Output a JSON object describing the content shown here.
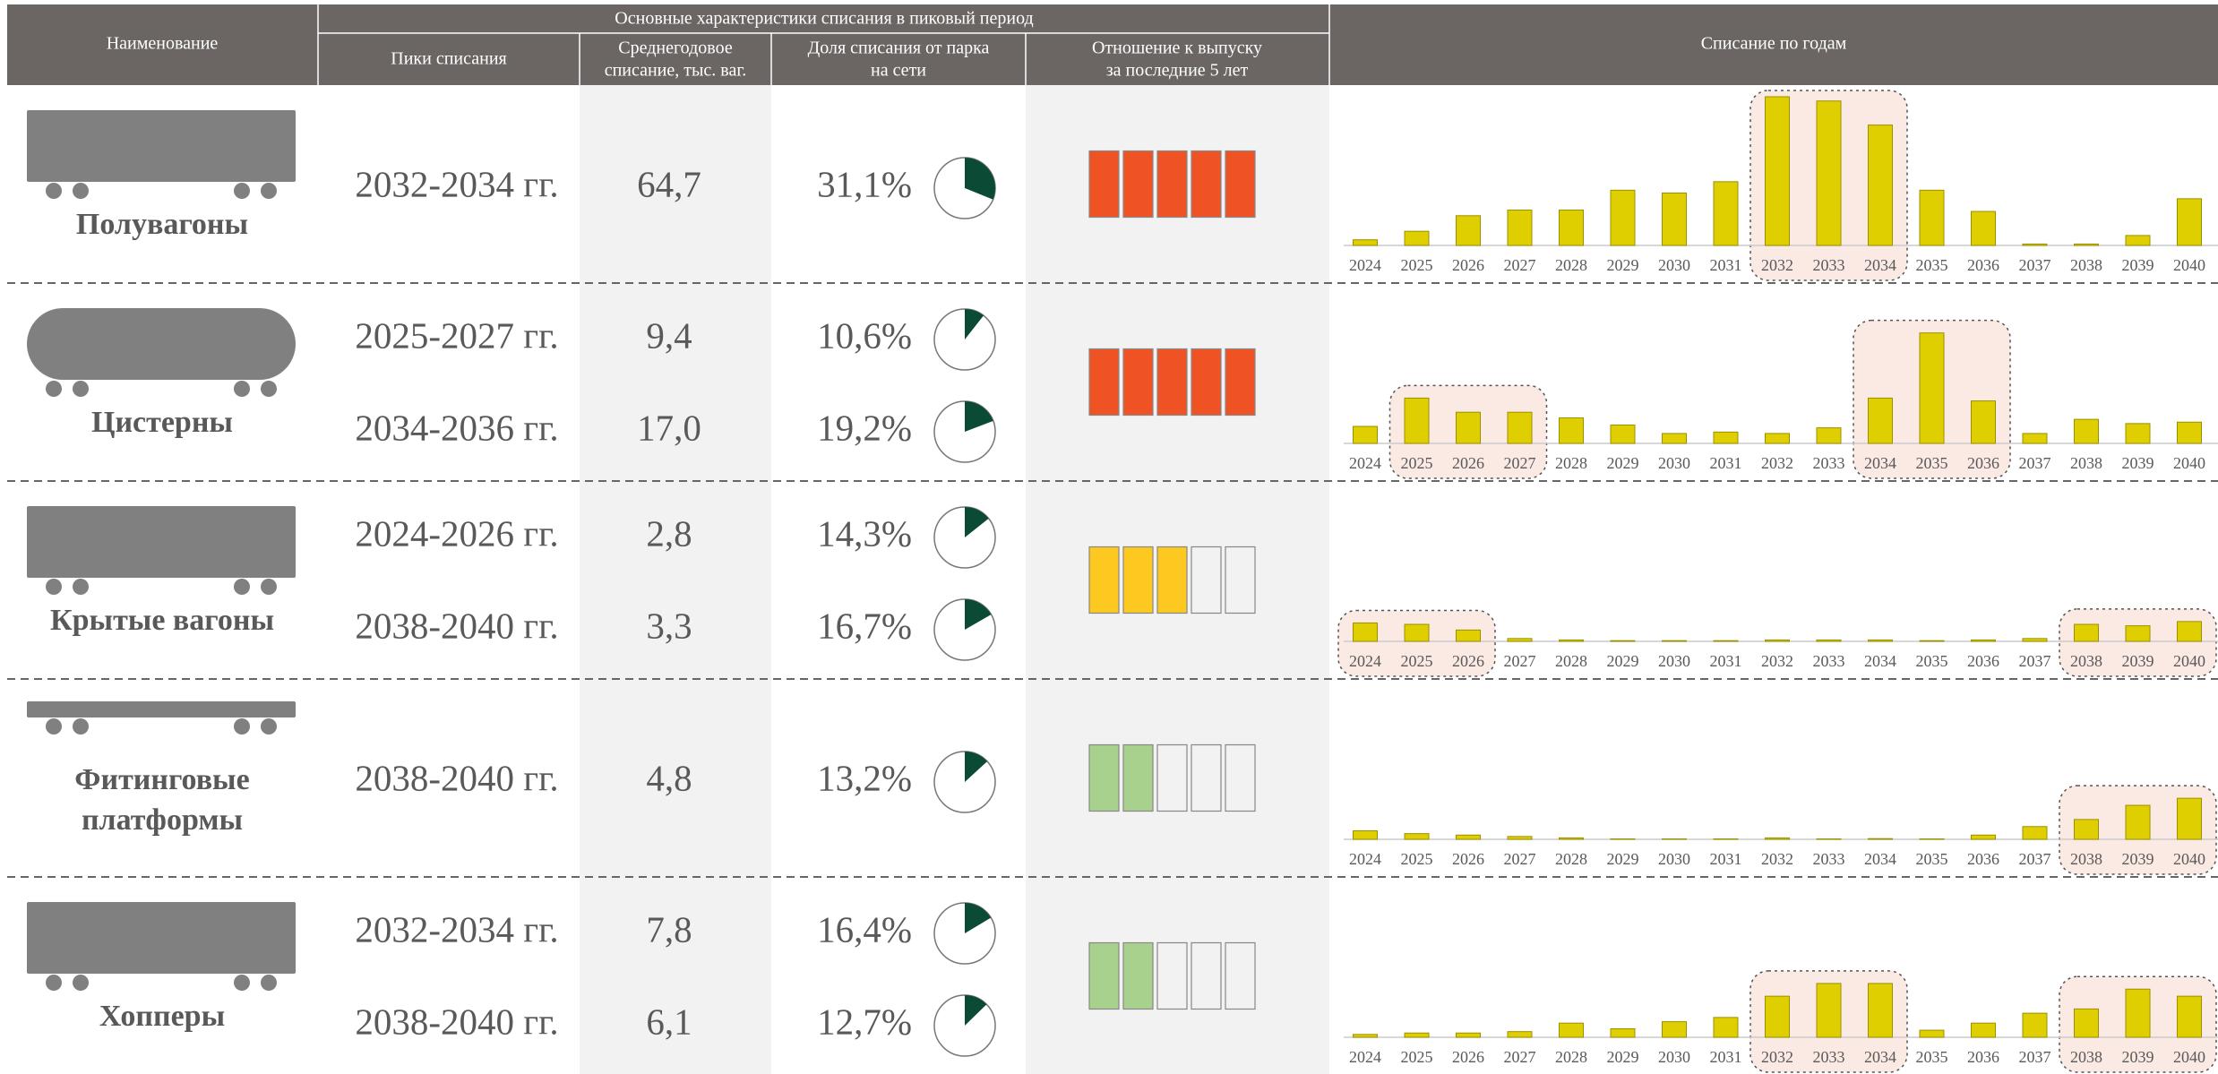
{
  "header": {
    "name": "Наименование",
    "peak_group": "Основные характеристики списания в пиковый период",
    "peaks": "Пики списания",
    "avg": [
      "Среднегодовое",
      "списание, тыс. ваг."
    ],
    "share": [
      "Доля списания от парка",
      "на сети"
    ],
    "ratio": [
      "Отношение к выпуску",
      "за последние 5 лет"
    ],
    "by_year": "Списание по годам"
  },
  "years": [
    "2024",
    "2025",
    "2026",
    "2027",
    "2028",
    "2029",
    "2030",
    "2031",
    "2032",
    "2033",
    "2034",
    "2035",
    "2036",
    "2037",
    "2038",
    "2039",
    "2040"
  ],
  "pie_color": "#0b4a35",
  "bar_color": "#e0cf00",
  "ratio_scale": 5,
  "rows": [
    {
      "name_lines": [
        "Полувагоны"
      ],
      "peaks": [
        {
          "period": "2032-2034 гг.",
          "avg": "64,7",
          "share": 31.1,
          "share_label": "31,1%"
        }
      ],
      "ratio_filled": 5,
      "ratio_color": "#f05323",
      "bars": [
        4,
        10,
        21,
        25,
        25,
        39,
        37,
        45,
        105,
        102,
        85,
        39,
        24,
        1,
        1,
        7,
        33
      ],
      "highlights": [
        [
          8,
          10
        ]
      ]
    },
    {
      "name_lines": [
        "Цистерны"
      ],
      "peaks": [
        {
          "period": "2025-2027 гг.",
          "avg": "9,4",
          "share": 10.6,
          "share_label": "10,6%"
        },
        {
          "period": "2034-2036 гг.",
          "avg": "17,0",
          "share": 19.2,
          "share_label": "19,2%"
        }
      ],
      "ratio_filled": 5,
      "ratio_color": "#f05323",
      "bars": [
        12,
        32,
        22,
        22,
        18,
        13,
        7,
        8,
        7,
        11,
        32,
        78,
        30,
        7,
        17,
        14,
        15
      ],
      "highlights": [
        [
          1,
          3
        ],
        [
          10,
          12
        ]
      ]
    },
    {
      "name_lines": [
        "Крытые вагоны"
      ],
      "peaks": [
        {
          "period": "2024-2026 гг.",
          "avg": "2,8",
          "share": 14.3,
          "share_label": "14,3%"
        },
        {
          "period": "2038-2040 гг.",
          "avg": "3,3",
          "share": 16.7,
          "share_label": "16,7%"
        }
      ],
      "ratio_filled": 3,
      "ratio_color": "#fdc921",
      "bars": [
        13,
        12,
        8,
        2,
        1,
        0.5,
        0.5,
        0.5,
        1,
        1,
        1,
        0.5,
        1,
        2,
        12,
        11,
        14
      ],
      "highlights": [
        [
          0,
          2
        ],
        [
          14,
          16
        ]
      ]
    },
    {
      "name_lines": [
        "Фитинговые",
        "платформы"
      ],
      "peaks": [
        {
          "period": "2038-2040 гг.",
          "avg": "4,8",
          "share": 13.2,
          "share_label": "13,2%"
        }
      ],
      "ratio_filled": 2,
      "ratio_color": "#a9d18e",
      "bars": [
        6,
        4,
        3,
        2,
        1,
        0.3,
        0.3,
        0.3,
        1,
        0.3,
        0.5,
        0.3,
        3,
        9,
        14,
        24,
        29
      ],
      "highlights": [
        [
          14,
          16
        ]
      ]
    },
    {
      "name_lines": [
        "Хопперы"
      ],
      "peaks": [
        {
          "period": "2032-2034 гг.",
          "avg": "7,8",
          "share": 16.4,
          "share_label": "16,4%"
        },
        {
          "period": "2038-2040 гг.",
          "avg": "6,1",
          "share": 12.7,
          "share_label": "12,7%"
        }
      ],
      "ratio_filled": 2,
      "ratio_color": "#a9d18e",
      "bars": [
        2,
        3,
        3,
        4,
        10,
        6,
        11,
        14,
        29,
        38,
        38,
        5,
        10,
        17,
        20,
        34,
        29
      ],
      "highlights": [
        [
          8,
          10
        ],
        [
          14,
          16
        ]
      ]
    }
  ]
}
